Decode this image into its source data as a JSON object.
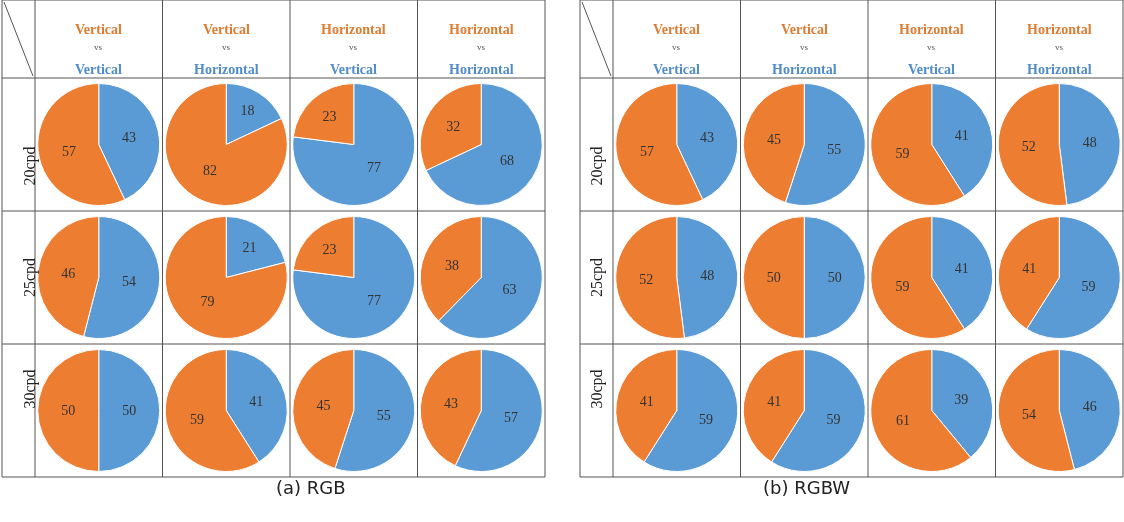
{
  "chart_data": [
    {
      "type": "other",
      "title": "(a) RGB",
      "categories": [
        "Vertical vs Vertical",
        "Vertical vs Horizontal",
        "Horizontal vs Vertical",
        "Horizontal vs Horizontal"
      ],
      "y_categories": [
        "20cpd",
        "25cpd",
        "30cpd"
      ],
      "colors": [
        "#e07b32",
        "#555555",
        "#4f8cc9"
      ]
    },
    {
      "type": "pie",
      "categories": [
        null,
        null
      ],
      "values": [
        43,
        57
      ],
      "colors": [
        "#5b9bd5",
        "#ed7d31"
      ],
      "data_labels": true
    },
    {
      "type": "pie",
      "categories": [
        null,
        null
      ],
      "values": [
        18,
        82
      ],
      "colors": [
        "#5b9bd5",
        "#ed7d31"
      ],
      "data_labels": true
    },
    {
      "type": "pie",
      "categories": [
        null,
        null
      ],
      "values": [
        77,
        23
      ],
      "colors": [
        "#5b9bd5",
        "#ed7d31"
      ],
      "data_labels": true
    },
    {
      "type": "pie",
      "categories": [
        null,
        null
      ],
      "values": [
        68,
        32
      ],
      "colors": [
        "#5b9bd5",
        "#ed7d31"
      ],
      "data_labels": true
    },
    {
      "type": "pie",
      "categories": [
        null,
        null
      ],
      "values": [
        54,
        46
      ],
      "colors": [
        "#5b9bd5",
        "#ed7d31"
      ],
      "data_labels": true
    },
    {
      "type": "pie",
      "categories": [
        null,
        null
      ],
      "values": [
        21,
        79
      ],
      "colors": [
        "#5b9bd5",
        "#ed7d31"
      ],
      "data_labels": true
    },
    {
      "type": "pie",
      "categories": [
        null,
        null
      ],
      "values": [
        77,
        23
      ],
      "colors": [
        "#5b9bd5",
        "#ed7d31"
      ],
      "data_labels": true
    },
    {
      "type": "pie",
      "categories": [
        null,
        null
      ],
      "values": [
        63,
        38
      ],
      "colors": [
        "#5b9bd5",
        "#ed7d31"
      ],
      "data_labels": true
    },
    {
      "type": "pie",
      "categories": [
        null,
        null
      ],
      "values": [
        50,
        50
      ],
      "colors": [
        "#5b9bd5",
        "#ed7d31"
      ],
      "data_labels": true
    },
    {
      "type": "pie",
      "categories": [
        null,
        null
      ],
      "values": [
        41,
        59
      ],
      "colors": [
        "#5b9bd5",
        "#ed7d31"
      ],
      "data_labels": true
    },
    {
      "type": "pie",
      "categories": [
        null,
        null
      ],
      "values": [
        55,
        45
      ],
      "colors": [
        "#5b9bd5",
        "#ed7d31"
      ],
      "data_labels": true
    },
    {
      "type": "pie",
      "categories": [
        null,
        null
      ],
      "values": [
        57,
        43
      ],
      "colors": [
        "#5b9bd5",
        "#ed7d31"
      ],
      "data_labels": true
    },
    {
      "type": "other",
      "title": "(b) RGBW",
      "categories": [
        "Vertical vs Vertical",
        "Vertical vs Horizontal",
        "Horizontal vs Vertical",
        "Horizontal vs Horizontal"
      ],
      "y_categories": [
        "20cpd",
        "25cpd",
        "30cpd"
      ],
      "colors": [
        "#e07b32",
        "#555555",
        "#4f8cc9"
      ]
    },
    {
      "type": "pie",
      "categories": [
        null,
        null
      ],
      "values": [
        43,
        57
      ],
      "colors": [
        "#5b9bd5",
        "#ed7d31"
      ],
      "data_labels": true
    },
    {
      "type": "pie",
      "categories": [
        null,
        null
      ],
      "values": [
        55,
        45
      ],
      "colors": [
        "#5b9bd5",
        "#ed7d31"
      ],
      "data_labels": true
    },
    {
      "type": "pie",
      "categories": [
        null,
        null
      ],
      "values": [
        41,
        59
      ],
      "colors": [
        "#5b9bd5",
        "#ed7d31"
      ],
      "data_labels": true
    },
    {
      "type": "pie",
      "categories": [
        null,
        null
      ],
      "values": [
        48,
        52
      ],
      "colors": [
        "#5b9bd5",
        "#ed7d31"
      ],
      "data_labels": true
    },
    {
      "type": "pie",
      "categories": [
        null,
        null
      ],
      "values": [
        48,
        52
      ],
      "colors": [
        "#5b9bd5",
        "#ed7d31"
      ],
      "data_labels": true
    },
    {
      "type": "pie",
      "categories": [
        null,
        null
      ],
      "values": [
        50,
        50
      ],
      "colors": [
        "#5b9bd5",
        "#ed7d31"
      ],
      "data_labels": true
    },
    {
      "type": "pie",
      "categories": [
        null,
        null
      ],
      "values": [
        41,
        59
      ],
      "colors": [
        "#5b9bd5",
        "#ed7d31"
      ],
      "data_labels": true
    },
    {
      "type": "pie",
      "categories": [
        null,
        null
      ],
      "values": [
        59,
        41
      ],
      "colors": [
        "#5b9bd5",
        "#ed7d31"
      ],
      "data_labels": true
    },
    {
      "type": "pie",
      "categories": [
        null,
        null
      ],
      "values": [
        59,
        41
      ],
      "colors": [
        "#5b9bd5",
        "#ed7d31"
      ],
      "data_labels": true
    },
    {
      "type": "pie",
      "categories": [
        null,
        null
      ],
      "values": [
        59,
        41
      ],
      "colors": [
        "#5b9bd5",
        "#ed7d31"
      ],
      "data_labels": true
    },
    {
      "type": "pie",
      "categories": [
        null,
        null
      ],
      "values": [
        39,
        61
      ],
      "colors": [
        "#5b9bd5",
        "#ed7d31"
      ],
      "data_labels": true
    },
    {
      "type": "pie",
      "categories": [
        null,
        null
      ],
      "values": [
        46,
        54
      ],
      "colors": [
        "#5b9bd5",
        "#ed7d31"
      ],
      "data_labels": true
    }
  ]
}
